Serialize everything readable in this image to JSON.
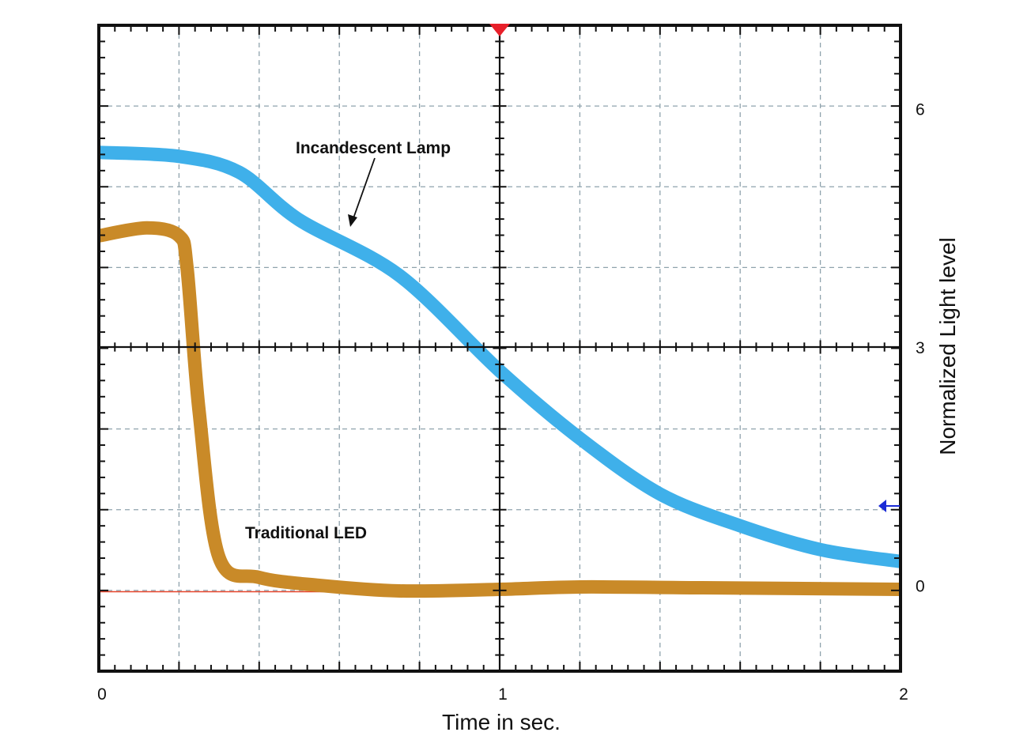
{
  "chart_data": {
    "type": "line",
    "title": "",
    "xlabel": "Time in sec.",
    "ylabel": "Normalized  Light level",
    "xlim": [
      0,
      2
    ],
    "ylim": [
      -1.08,
      7.05
    ],
    "x_ticks": [
      {
        "value": 0,
        "label": "0"
      },
      {
        "value": 1,
        "label": "1"
      },
      {
        "value": 2,
        "label": "2"
      }
    ],
    "y_ticks": [
      {
        "value": 0,
        "label": "0"
      },
      {
        "value": 3,
        "label": "3"
      },
      {
        "value": 6,
        "label": "6"
      }
    ],
    "grid": true,
    "reference_line_y": -0.08,
    "trigger_marker_x": 1,
    "level_marker_y": 1.0,
    "series": [
      {
        "name": "Incandescent Lamp",
        "color": "#3fb0ea",
        "x": [
          0,
          0.2,
          0.35,
          0.5,
          0.75,
          1.0,
          1.2,
          1.4,
          1.6,
          1.8,
          2.0
        ],
        "values": [
          5.45,
          5.4,
          5.2,
          4.6,
          3.9,
          2.7,
          1.85,
          1.15,
          0.75,
          0.45,
          0.3
        ]
      },
      {
        "name": "Traditional LED",
        "color": "#c98a28",
        "x": [
          0,
          0.12,
          0.2,
          0.22,
          0.25,
          0.3,
          0.4,
          0.55,
          0.75,
          1.0,
          1.2,
          1.5,
          2.0
        ],
        "values": [
          4.4,
          4.5,
          4.4,
          4.0,
          2.2,
          0.35,
          0.1,
          0.0,
          -0.07,
          -0.05,
          -0.02,
          -0.03,
          -0.05
        ]
      }
    ],
    "annotations": [
      {
        "text": "Incandescent Lamp",
        "target_series": 0
      },
      {
        "text": "Traditional LED",
        "target_series": 1
      }
    ]
  }
}
